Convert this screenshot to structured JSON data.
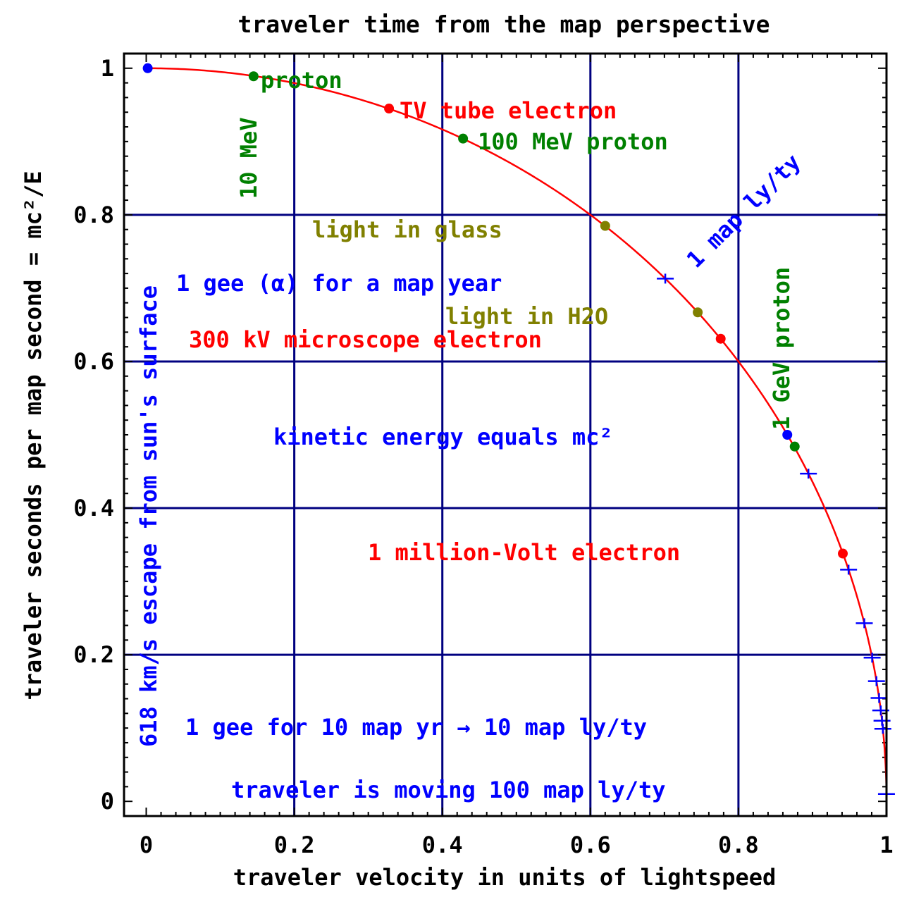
{
  "chart_data": {
    "type": "line",
    "title": "traveler time from the map perspective",
    "xlabel": "traveler velocity in units of lightspeed",
    "ylabel": "traveler seconds per map second = mc²/E",
    "xlim": [
      -0.03,
      1.0
    ],
    "ylim": [
      -0.02,
      1.02
    ],
    "grid": true,
    "x_ticks": [
      "0",
      "0.2",
      "0.4",
      "0.6",
      "0.8",
      "1"
    ],
    "x_tick_values": [
      0,
      0.2,
      0.4,
      0.6,
      0.8,
      1
    ],
    "y_ticks": [
      "0",
      "0.2",
      "0.4",
      "0.6",
      "0.8",
      "1"
    ],
    "y_tick_values": [
      0,
      0.2,
      0.4,
      0.6,
      0.8,
      1
    ],
    "curve": {
      "formula": "y = sqrt(1 - x^2)",
      "color": "#ff0000"
    },
    "points": [
      {
        "label": "618 km/s escape from sun's surface",
        "x": 0.002,
        "y": 1.0,
        "color": "#0000ff"
      },
      {
        "label": "10 MeV proton",
        "x": 0.145,
        "y": 0.989,
        "color": "#008000"
      },
      {
        "label": "TV tube electron",
        "x": 0.328,
        "y": 0.945,
        "color": "#ff0000"
      },
      {
        "label": "100 MeV proton",
        "x": 0.428,
        "y": 0.904,
        "color": "#008000"
      },
      {
        "label": "light in glass",
        "x": 0.62,
        "y": 0.785,
        "color": "#808000"
      },
      {
        "label": "light in H2O",
        "x": 0.745,
        "y": 0.667,
        "color": "#808000"
      },
      {
        "label": "300 kV microscope electron",
        "x": 0.776,
        "y": 0.631,
        "color": "#ff0000"
      },
      {
        "label": "kinetic energy equals mc²",
        "x": 0.866,
        "y": 0.5,
        "color": "#0000ff"
      },
      {
        "label": "1 GeV proton",
        "x": 0.876,
        "y": 0.484,
        "color": "#008000"
      },
      {
        "label": "1 million-Volt electron",
        "x": 0.941,
        "y": 0.338,
        "color": "#ff0000"
      }
    ],
    "accel_ticks": {
      "color": "#0000ff",
      "y_values": [
        0.713,
        0.447,
        0.316,
        0.243,
        0.196,
        0.164,
        0.141,
        0.124,
        0.11,
        0.099,
        0.01
      ]
    },
    "annotations": [
      {
        "text": "10 MeV",
        "color": "#008000",
        "rotate": -90
      },
      {
        "text": "proton",
        "color": "#008000",
        "rotate": 0
      },
      {
        "text": "TV tube electron",
        "color": "#ff0000",
        "rotate": 0
      },
      {
        "text": "100 MeV proton",
        "color": "#008000",
        "rotate": 0
      },
      {
        "text": "light in glass",
        "color": "#808000",
        "rotate": 0
      },
      {
        "text": "1 gee (α) for a map year",
        "color": "#0000ff",
        "rotate": 0
      },
      {
        "text": "light in H2O",
        "color": "#808000",
        "rotate": 0
      },
      {
        "text": "300 kV microscope electron",
        "color": "#ff0000",
        "rotate": 0
      },
      {
        "text": "kinetic energy equals mc²",
        "color": "#0000ff",
        "rotate": 0
      },
      {
        "text": "1 million-Volt electron",
        "color": "#ff0000",
        "rotate": 0
      },
      {
        "text": "1 gee for 10 map yr → 10 map ly/ty",
        "color": "#0000ff",
        "rotate": 0
      },
      {
        "text": "traveler is moving 100 map ly/ty",
        "color": "#0000ff",
        "rotate": 0
      },
      {
        "text": "618 km/s escape from sun's surface",
        "color": "#0000ff",
        "rotate": -90
      },
      {
        "text": "1 GeV proton",
        "color": "#008000",
        "rotate": -90
      },
      {
        "text": "1 map ly/ty",
        "color": "#0000ff",
        "rotate": -45
      }
    ],
    "colors": {
      "grid": "#000080",
      "frame": "#000000",
      "curve": "#ff0000"
    }
  }
}
